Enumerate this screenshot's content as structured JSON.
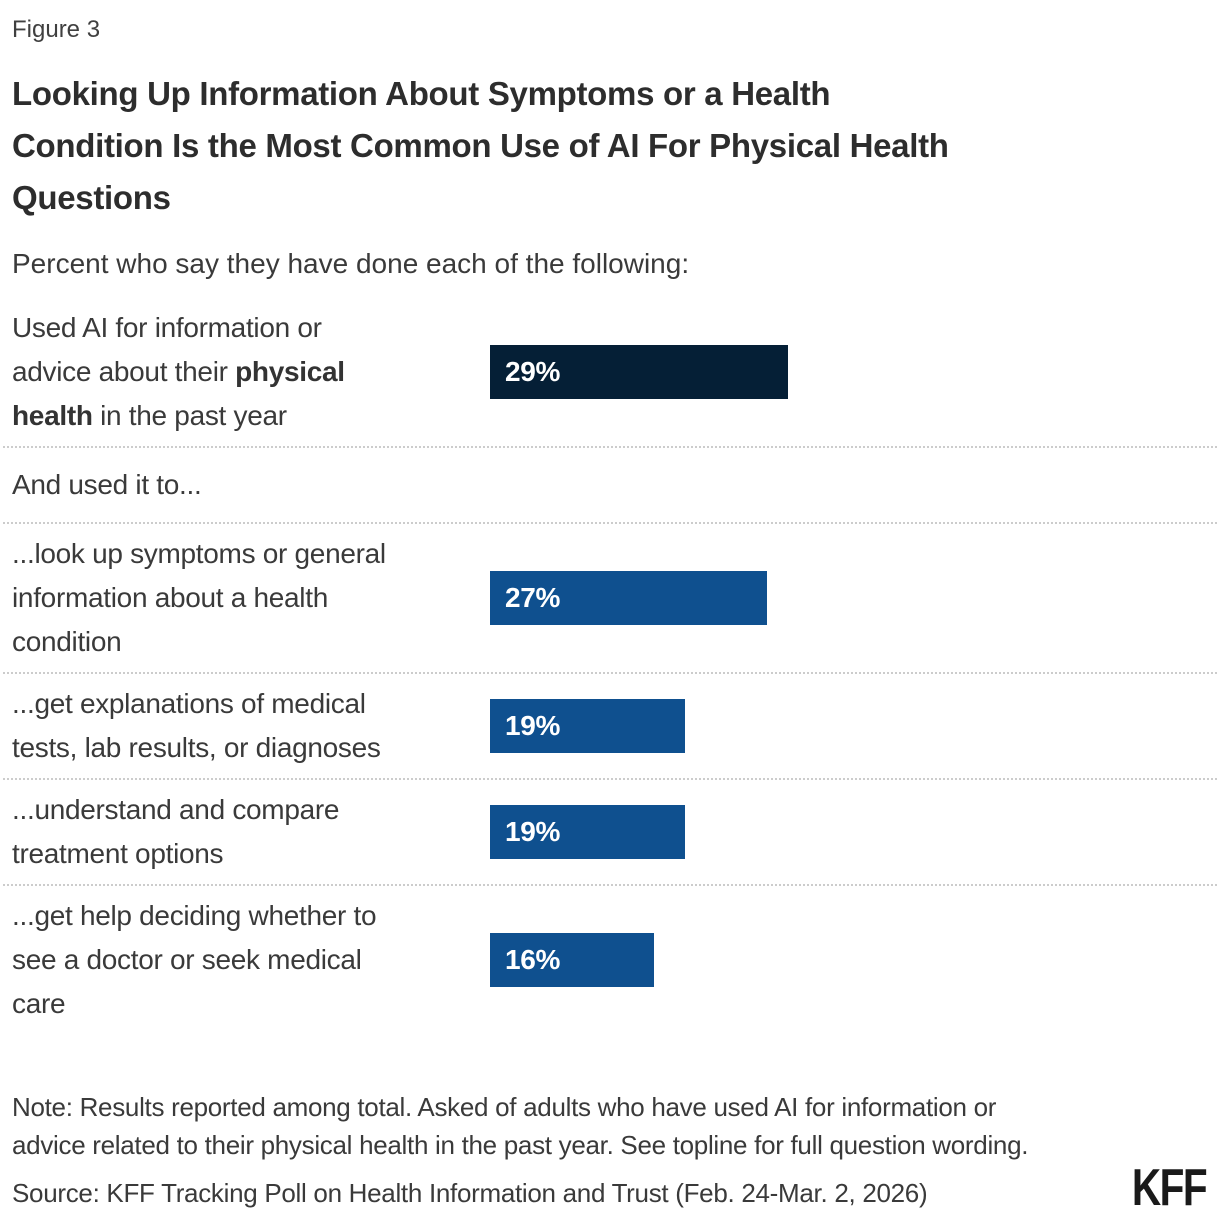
{
  "figure_label": "Figure 3",
  "header": {
    "title_lines": [
      "Looking Up Information About Symptoms or a Health",
      "Condition Is the Most Common Use of AI For Physical Health",
      "Questions"
    ],
    "subtitle": "Percent who say they have done each of the following:"
  },
  "colors": {
    "navy": "#051f36",
    "blue": "#0f508f",
    "divider": "#cccccc"
  },
  "chart_data": {
    "type": "bar",
    "orientation": "horizontal",
    "unit": "percent",
    "title": "Looking Up Information About Symptoms or a Health Condition Is the Most Common Use of AI For Physical Health Questions",
    "subtitle": "Percent who say they have done each of the following:",
    "section_heading": "And used it to...",
    "categories": [
      "Used AI for information or advice about their physical health in the past year",
      "...look up symptoms or general information about a health condition",
      "...get explanations of medical tests, lab results, or diagnoses",
      "...understand and compare treatment options",
      "...get help deciding whether to see a doctor or seek medical care"
    ],
    "values": [
      29,
      27,
      19,
      19,
      16
    ],
    "value_labels": [
      "29%",
      "27%",
      "19%",
      "19%",
      "16%"
    ],
    "rows": [
      {
        "kind": "bar",
        "name": "used-ai-physical-health",
        "label_lines": [
          [
            {
              "t": "Used AI for information or",
              "b": false
            }
          ],
          [
            {
              "t": "advice about their ",
              "b": false
            },
            {
              "t": "physical",
              "b": true
            }
          ],
          [
            {
              "t": "health",
              "b": true
            },
            {
              "t": " in the past year",
              "b": false
            }
          ]
        ],
        "value": 29,
        "display": "29%",
        "color_key": "navy",
        "divider_after": true
      },
      {
        "kind": "heading",
        "name": "and-used-it-to",
        "label": "And used it to...",
        "divider_after": true
      },
      {
        "kind": "bar",
        "name": "look-up-symptoms",
        "label_lines": [
          [
            {
              "t": "...look up symptoms or general",
              "b": false
            }
          ],
          [
            {
              "t": "information about a health",
              "b": false
            }
          ],
          [
            {
              "t": "condition",
              "b": false
            }
          ]
        ],
        "value": 27,
        "display": "27%",
        "color_key": "blue",
        "divider_after": true
      },
      {
        "kind": "bar",
        "name": "explanations-of-medical-tests",
        "label_lines": [
          [
            {
              "t": "...get explanations of medical",
              "b": false
            }
          ],
          [
            {
              "t": "tests, lab results, or diagnoses",
              "b": false
            }
          ]
        ],
        "value": 19,
        "display": "19%",
        "color_key": "blue",
        "divider_after": true
      },
      {
        "kind": "bar",
        "name": "compare-treatment-options",
        "label_lines": [
          [
            {
              "t": "...understand and compare",
              "b": false
            }
          ],
          [
            {
              "t": "treatment options",
              "b": false
            }
          ]
        ],
        "value": 19,
        "display": "19%",
        "color_key": "blue",
        "divider_after": true
      },
      {
        "kind": "bar",
        "name": "deciding-to-see-doctor",
        "label_lines": [
          [
            {
              "t": "...get help deciding whether to",
              "b": false
            }
          ],
          [
            {
              "t": "see a doctor or seek medical",
              "b": false
            }
          ],
          [
            {
              "t": "care",
              "b": false
            }
          ]
        ],
        "value": 16,
        "display": "16%",
        "color_key": "blue",
        "divider_after": false
      }
    ]
  },
  "footer": {
    "note_lines": [
      "Note: Results reported among total. Asked of adults who have used AI for information or",
      "advice related to their physical health in the past year. See topline for full question wording."
    ],
    "source": "Source: KFF Tracking Poll on Health Information and Trust (Feb. 24-Mar. 2, 2026)",
    "logo": "KFF"
  }
}
